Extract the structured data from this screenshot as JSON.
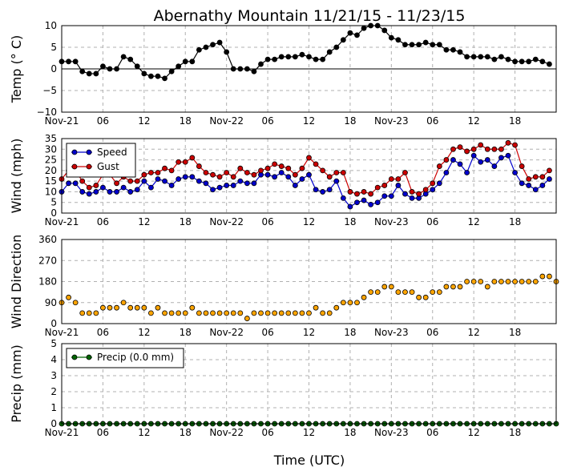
{
  "chart_data": {
    "title": "Abernathy Mountain 11/21/15 - 11/23/15",
    "xlabel": "Time (UTC)",
    "x_start_hour": 0,
    "x_end_hour": 72,
    "x_tick_hours": [
      0,
      6,
      12,
      18,
      24,
      30,
      36,
      42,
      48,
      54,
      60,
      66
    ],
    "x_tick_labels": [
      "Nov-21",
      "06",
      "12",
      "18",
      "Nov-22",
      "06",
      "12",
      "18",
      "Nov-23",
      "06",
      "12",
      "18"
    ],
    "time_step_hours": 1,
    "panels": [
      {
        "type": "line",
        "name": "temp",
        "ylabel": "Temp ($^\\circ$C)",
        "ylabel_display": "Temp (° C)",
        "ylim": [
          -10,
          10
        ],
        "yticks": [
          -10,
          -5,
          0,
          5,
          10
        ],
        "ytick_labels": [
          "−10",
          "−5",
          "0",
          "5",
          "10"
        ],
        "zero_line": true,
        "series": [
          {
            "name": "Temp",
            "color": "#000000",
            "values": [
              1.7,
              1.7,
              1.7,
              -0.6,
              -1.1,
              -1.1,
              0.6,
              0,
              0,
              2.8,
              2.2,
              0.6,
              -1.1,
              -1.7,
              -1.7,
              -2.2,
              -0.6,
              0.6,
              1.7,
              1.7,
              4.4,
              5,
              5.6,
              6.1,
              3.9,
              0,
              0,
              0,
              -0.6,
              1.1,
              2.2,
              2.2,
              2.8,
              2.8,
              2.8,
              3.3,
              2.8,
              2.2,
              2.2,
              3.9,
              5,
              6.7,
              8.3,
              7.8,
              9.4,
              10,
              10,
              8.9,
              7.2,
              6.7,
              5.6,
              5.6,
              5.6,
              6.1,
              5.6,
              5.6,
              4.4,
              4.4,
              3.9,
              2.8,
              2.8,
              2.8,
              2.8,
              2.2,
              2.8,
              2.2,
              1.7,
              1.7,
              1.7,
              2.2,
              1.7,
              1.1
            ]
          }
        ]
      },
      {
        "type": "line",
        "name": "wind",
        "ylabel": "Wind (mph)",
        "ylim": [
          0,
          35
        ],
        "yticks": [
          0,
          5,
          10,
          15,
          20,
          25,
          30,
          35
        ],
        "ytick_labels": [
          "0",
          "5",
          "10",
          "15",
          "20",
          "25",
          "30",
          "35"
        ],
        "legend": "upper-left",
        "series": [
          {
            "name": "Speed",
            "color": "#0000cc",
            "values": [
              10,
              14,
              14,
              10,
              9,
              10,
              12,
              10,
              10,
              12,
              10,
              11,
              15,
              12,
              16,
              15,
              13,
              16,
              17,
              17,
              15,
              14,
              11,
              12,
              13,
              13,
              15,
              14,
              14,
              18,
              18,
              17,
              19,
              17,
              13,
              16,
              18,
              11,
              10,
              11,
              15,
              7,
              3,
              5,
              6,
              4,
              5,
              8,
              8,
              13,
              9,
              7,
              7,
              9,
              11,
              14,
              19,
              25,
              23,
              19,
              27,
              24,
              25,
              22,
              26,
              27,
              19,
              14,
              13,
              11,
              13,
              16
            ]
          },
          {
            "name": "Gust",
            "color": "#cc0000",
            "values": [
              16,
              20,
              20,
              15,
              12,
              13,
              18,
              18,
              14,
              17,
              15,
              15,
              18,
              19,
              19,
              21,
              20,
              24,
              24,
              26,
              22,
              19,
              18,
              17,
              19,
              17,
              21,
              19,
              18,
              20,
              21,
              23,
              22,
              21,
              18,
              21,
              26,
              23,
              20,
              17,
              19,
              19,
              10,
              9,
              10,
              9,
              12,
              13,
              16,
              16,
              19,
              10,
              9,
              11,
              14,
              22,
              25,
              30,
              31,
              29,
              30,
              32,
              30,
              30,
              30,
              33,
              32,
              22,
              16,
              17,
              17,
              20
            ]
          }
        ]
      },
      {
        "type": "scatter",
        "name": "direction",
        "ylabel": "Wind Direction",
        "ylim": [
          0,
          360
        ],
        "yticks": [
          0,
          90,
          180,
          270,
          360
        ],
        "ytick_labels": [
          "0",
          "90",
          "180",
          "270",
          "360"
        ],
        "series": [
          {
            "name": "Direction",
            "color": "#ffa500",
            "values": [
              90,
              112,
              90,
              45,
              45,
              45,
              68,
              68,
              68,
              90,
              68,
              68,
              68,
              45,
              68,
              45,
              45,
              45,
              45,
              68,
              45,
              45,
              45,
              45,
              45,
              45,
              45,
              22,
              45,
              45,
              45,
              45,
              45,
              45,
              45,
              45,
              45,
              68,
              45,
              45,
              68,
              90,
              90,
              90,
              112,
              135,
              135,
              158,
              158,
              135,
              135,
              135,
              112,
              112,
              135,
              135,
              158,
              158,
              158,
              180,
              180,
              180,
              158,
              180,
              180,
              180,
              180,
              180,
              180,
              180,
              202,
              202,
              180
            ]
          }
        ]
      },
      {
        "type": "line",
        "name": "precip",
        "ylabel": "Precip (mm)",
        "ylim": [
          0,
          5
        ],
        "yticks": [
          0,
          1,
          2,
          3,
          4,
          5
        ],
        "ytick_labels": [
          "0",
          "1",
          "2",
          "3",
          "4",
          "5"
        ],
        "legend": "upper-left",
        "series": [
          {
            "name": "Precip (0.0 mm)",
            "color": "#006400",
            "values": [
              0,
              0,
              0,
              0,
              0,
              0,
              0,
              0,
              0,
              0,
              0,
              0,
              0,
              0,
              0,
              0,
              0,
              0,
              0,
              0,
              0,
              0,
              0,
              0,
              0,
              0,
              0,
              0,
              0,
              0,
              0,
              0,
              0,
              0,
              0,
              0,
              0,
              0,
              0,
              0,
              0,
              0,
              0,
              0,
              0,
              0,
              0,
              0,
              0,
              0,
              0,
              0,
              0,
              0,
              0,
              0,
              0,
              0,
              0,
              0,
              0,
              0,
              0,
              0,
              0,
              0,
              0,
              0,
              0,
              0,
              0,
              0,
              0
            ]
          }
        ]
      }
    ]
  }
}
